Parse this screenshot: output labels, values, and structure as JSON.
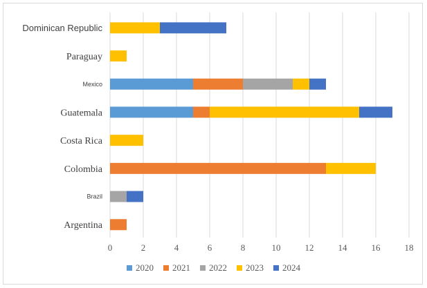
{
  "chart_data": {
    "type": "bar",
    "orientation": "horizontal",
    "stacked": true,
    "title": "",
    "xlabel": "",
    "ylabel": "",
    "xlim": [
      0,
      18
    ],
    "x_ticks": [
      0,
      2,
      4,
      6,
      8,
      10,
      12,
      14,
      16,
      18
    ],
    "grid": true,
    "legend_position": "bottom",
    "categories": [
      "Dominican Republic",
      "Paraguay",
      "Mexico",
      "Guatemala",
      "Costa Rica",
      "Colombia",
      "Brazil",
      "Argentina"
    ],
    "category_label_fonts": [
      "sans",
      "serif",
      "sans-small",
      "serif",
      "serif",
      "serif",
      "sans-small",
      "serif"
    ],
    "series": [
      {
        "name": "2020",
        "color": "#5b9bd5",
        "values": [
          0,
          0,
          5,
          5,
          0,
          0,
          0,
          0
        ]
      },
      {
        "name": "2021",
        "color": "#ed7d31",
        "values": [
          0,
          0,
          3,
          1,
          0,
          13,
          0,
          1
        ]
      },
      {
        "name": "2022",
        "color": "#a5a5a5",
        "values": [
          0,
          0,
          3,
          0,
          0,
          0,
          1,
          0
        ]
      },
      {
        "name": "2023",
        "color": "#ffc000",
        "values": [
          3,
          1,
          1,
          9,
          2,
          3,
          0,
          0
        ]
      },
      {
        "name": "2024",
        "color": "#4472c4",
        "values": [
          4,
          0,
          1,
          2,
          0,
          0,
          1,
          0
        ]
      }
    ]
  }
}
